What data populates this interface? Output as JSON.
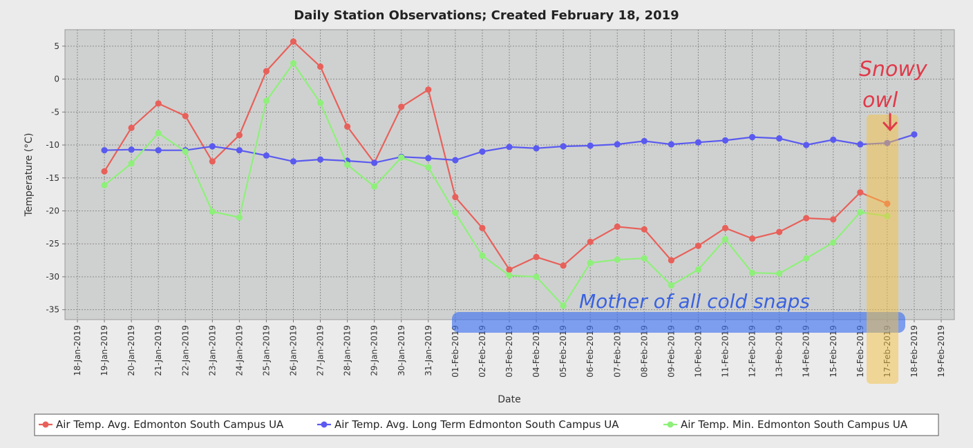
{
  "chart_data": {
    "type": "line",
    "title": "Daily Station Observations; Created February 18, 2019",
    "xlabel": "Date",
    "ylabel": "Temperature (°C)",
    "ylim": [
      -36.5,
      7.5
    ],
    "yticks": [
      "5",
      "0",
      "-5",
      "-10",
      "-15",
      "-20",
      "-25",
      "-30",
      "-35"
    ],
    "grid": true,
    "legend_position": "bottom",
    "x": [
      "18-Jan-2019",
      "19-Jan-2019",
      "20-Jan-2019",
      "21-Jan-2019",
      "22-Jan-2019",
      "23-Jan-2019",
      "24-Jan-2019",
      "25-Jan-2019",
      "26-Jan-2019",
      "27-Jan-2019",
      "28-Jan-2019",
      "29-Jan-2019",
      "30-Jan-2019",
      "31-Jan-2019",
      "01-Feb-2019",
      "02-Feb-2019",
      "03-Feb-2019",
      "04-Feb-2019",
      "05-Feb-2019",
      "06-Feb-2019",
      "07-Feb-2019",
      "08-Feb-2019",
      "09-Feb-2019",
      "10-Feb-2019",
      "11-Feb-2019",
      "12-Feb-2019",
      "13-Feb-2019",
      "14-Feb-2019",
      "15-Feb-2019",
      "16-Feb-2019",
      "17-Feb-2019",
      "18-Feb-2019",
      "19-Feb-2019"
    ],
    "series": [
      {
        "name": "Air Temp. Avg. Edmonton South Campus UA",
        "color": "#e8605a",
        "values": [
          null,
          -14.0,
          -7.4,
          -3.7,
          -5.6,
          -12.5,
          -8.5,
          1.2,
          5.7,
          1.9,
          -7.2,
          -12.7,
          -4.2,
          -1.6,
          -17.9,
          -22.6,
          -28.9,
          -27.0,
          -28.3,
          -24.7,
          -22.4,
          -22.8,
          -27.5,
          -25.3,
          -22.6,
          -24.2,
          -23.2,
          -21.1,
          -21.3,
          -17.2,
          -18.9,
          null,
          null
        ]
      },
      {
        "name": "Air Temp. Avg. Long Term Edmonton South Campus UA",
        "color": "#5a5af0",
        "values": [
          null,
          -10.8,
          -10.7,
          -10.8,
          -10.8,
          -10.2,
          -10.8,
          -11.6,
          -12.5,
          -12.2,
          -12.4,
          -12.7,
          -11.8,
          -12.0,
          -12.3,
          -11.0,
          -10.3,
          -10.5,
          -10.2,
          -10.1,
          -9.9,
          -9.4,
          -9.9,
          -9.6,
          -9.3,
          -8.8,
          -9.0,
          -10.0,
          -9.2,
          -9.9,
          -9.7,
          -8.4,
          null
        ]
      },
      {
        "name": "Air Temp. Min. Edmonton South Campus UA",
        "color": "#8ef07a",
        "values": [
          null,
          -16.1,
          -12.8,
          -8.2,
          -11.0,
          -20.1,
          -21.0,
          -3.3,
          2.4,
          -3.6,
          -13.0,
          -16.3,
          -11.9,
          -13.4,
          -20.3,
          -26.8,
          -29.8,
          -30.0,
          -34.4,
          -27.9,
          -27.4,
          -27.2,
          -31.3,
          -28.9,
          -24.3,
          -29.4,
          -29.5,
          -27.2,
          -24.8,
          -20.2,
          -20.8,
          null,
          null
        ]
      }
    ],
    "annotations": [
      {
        "text": "Snowy",
        "color": "#e03a4a"
      },
      {
        "text": "owl",
        "color": "#e03a4a"
      },
      {
        "text": "Mother of all cold snaps",
        "color": "#3a62e0"
      }
    ]
  }
}
